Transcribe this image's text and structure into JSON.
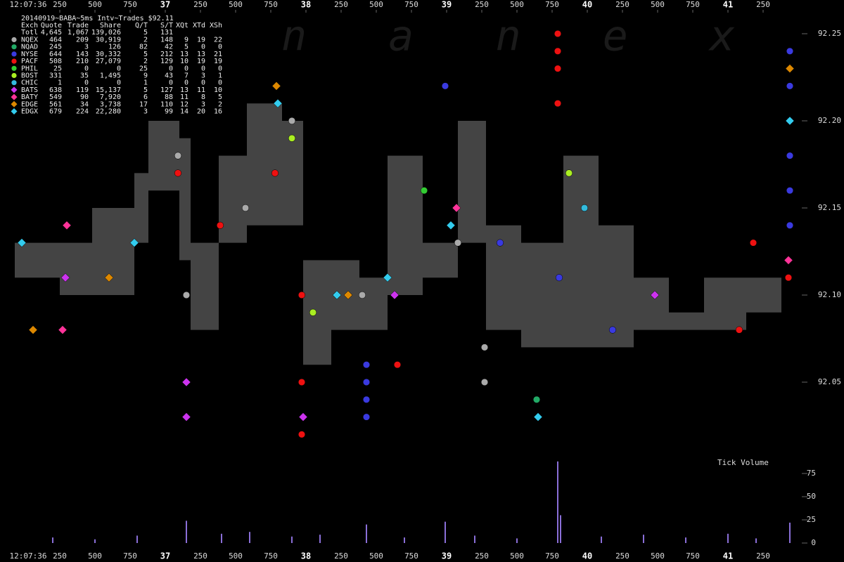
{
  "chart_data": {
    "type": "scatter",
    "title": "20140919~BABA~5ms Intv~Trades $92.11",
    "time_label": "12:07:36",
    "watermark": "n a n e x",
    "xlim": [
      35.825,
      41.825
    ],
    "xticks": [
      {
        "value": 36.25,
        "label": "250"
      },
      {
        "value": 36.5,
        "label": "500"
      },
      {
        "value": 36.75,
        "label": "750"
      },
      {
        "value": 37,
        "label": "37"
      },
      {
        "value": 37.25,
        "label": "250"
      },
      {
        "value": 37.5,
        "label": "500"
      },
      {
        "value": 37.75,
        "label": "750"
      },
      {
        "value": 38,
        "label": "38"
      },
      {
        "value": 38.25,
        "label": "250"
      },
      {
        "value": 38.5,
        "label": "500"
      },
      {
        "value": 38.75,
        "label": "750"
      },
      {
        "value": 39,
        "label": "39"
      },
      {
        "value": 39.25,
        "label": "250"
      },
      {
        "value": 39.5,
        "label": "500"
      },
      {
        "value": 39.75,
        "label": "750"
      },
      {
        "value": 40,
        "label": "40"
      },
      {
        "value": 40.25,
        "label": "250"
      },
      {
        "value": 40.5,
        "label": "500"
      },
      {
        "value": 40.75,
        "label": "750"
      },
      {
        "value": 41,
        "label": "41"
      },
      {
        "value": 41.25,
        "label": "250"
      }
    ],
    "ylim": [
      92.0,
      92.27
    ],
    "yticks": [
      92.05,
      {
        "value": 92.1,
        "label": "92.10"
      },
      92.15,
      {
        "value": 92.2,
        "label": "92.20"
      },
      92.25
    ],
    "stats_header": [
      "Exch",
      "Quote",
      "Trade",
      "Share",
      "Q/T",
      "S/T",
      "XQt",
      "XTd",
      "XSh"
    ],
    "stats_total": [
      "Totl",
      "4,645",
      "1,067",
      "139,026",
      "5",
      "131"
    ],
    "spread": {
      "color": "#444444",
      "x": [
        35.93,
        36.25,
        36.48,
        36.78,
        36.88,
        37.1,
        37.18,
        37.38,
        37.58,
        37.83,
        37.98,
        38.18,
        38.38,
        38.58,
        38.83,
        39.08,
        39.28,
        39.53,
        39.83,
        40.08,
        40.33,
        40.58,
        40.83,
        41.13,
        41.38
      ],
      "high": [
        92.13,
        92.13,
        92.15,
        92.17,
        92.2,
        92.19,
        92.13,
        92.18,
        92.21,
        92.2,
        92.12,
        92.12,
        92.11,
        92.18,
        92.13,
        92.2,
        92.14,
        92.13,
        92.18,
        92.14,
        92.11,
        92.09,
        92.11,
        92.11,
        92.13
      ],
      "low": [
        92.11,
        92.1,
        92.1,
        92.13,
        92.16,
        92.12,
        92.08,
        92.13,
        92.14,
        92.14,
        92.06,
        92.08,
        92.08,
        92.1,
        92.11,
        92.13,
        92.08,
        92.07,
        92.07,
        92.07,
        92.08,
        92.08,
        92.08,
        92.09,
        92.11
      ]
    },
    "series": [
      {
        "name": "NQEX",
        "color": "#aaaaaa",
        "marker": "circle",
        "stats": [
          "464",
          "209",
          "30,919",
          "2",
          "148",
          "9",
          "19",
          "22"
        ],
        "x": [
          39.08,
          39.27,
          39.27,
          37.15,
          37.09,
          37.57,
          37.9,
          38.4
        ],
        "values": [
          92.13,
          92.07,
          92.05,
          92.1,
          92.18,
          92.15,
          92.2,
          92.1
        ]
      },
      {
        "name": "NQAD",
        "color": "#22aa66",
        "marker": "circle",
        "stats": [
          "245",
          "3",
          "126",
          "82",
          "42",
          "5",
          "0",
          "0"
        ],
        "x": [
          39.64
        ],
        "values": [
          92.04
        ]
      },
      {
        "name": "NYSE",
        "color": "#3a3ae0",
        "marker": "circle",
        "stats": [
          "644",
          "143",
          "30,332",
          "5",
          "212",
          "13",
          "13",
          "21"
        ],
        "x": [
          38.43,
          38.43,
          38.43,
          38.43,
          41.44,
          41.44,
          41.44,
          41.44,
          41.44,
          41.44,
          39.38,
          40.18,
          38.99,
          39.8
        ],
        "values": [
          92.06,
          92.05,
          92.04,
          92.03,
          92.24,
          92.22,
          92.2,
          92.18,
          92.16,
          92.14,
          92.13,
          92.08,
          92.22,
          92.11
        ]
      },
      {
        "name": "PACF",
        "color": "#ee1111",
        "marker": "circle",
        "stats": [
          "508",
          "210",
          "27,079",
          "2",
          "129",
          "10",
          "19",
          "19"
        ],
        "x": [
          39.79,
          39.79,
          39.79,
          39.79,
          41.43,
          41.18,
          37.39,
          37.97,
          37.97,
          37.97,
          37.09,
          37.78,
          41.08,
          38.65
        ],
        "values": [
          92.25,
          92.24,
          92.23,
          92.21,
          92.11,
          92.13,
          92.14,
          92.1,
          92.05,
          92.02,
          92.17,
          92.17,
          92.08,
          92.06
        ]
      },
      {
        "name": "PHIL",
        "color": "#33cc33",
        "marker": "circle",
        "stats": [
          "25",
          "0",
          "0",
          "25",
          "0",
          "0",
          "0",
          "0"
        ],
        "x": [
          38.84
        ],
        "values": [
          92.16
        ]
      },
      {
        "name": "BOST",
        "color": "#aaee22",
        "marker": "circle",
        "stats": [
          "331",
          "35",
          "1,495",
          "9",
          "43",
          "7",
          "3",
          "1"
        ],
        "x": [
          37.9,
          38.05,
          39.87
        ],
        "values": [
          92.19,
          92.09,
          92.17
        ]
      },
      {
        "name": "CHIC",
        "color": "#33bbdd",
        "marker": "circle",
        "stats": [
          "1",
          "0",
          "0",
          "1",
          "0",
          "0",
          "0",
          "0"
        ],
        "x": [
          39.98
        ],
        "values": [
          92.15
        ]
      },
      {
        "name": "BATS",
        "color": "#cc33ee",
        "marker": "diamond",
        "stats": [
          "638",
          "119",
          "15,137",
          "5",
          "127",
          "13",
          "11",
          "10"
        ],
        "x": [
          37.15,
          37.15,
          37.98,
          36.29,
          40.48,
          38.63
        ],
        "values": [
          92.03,
          92.05,
          92.03,
          92.11,
          92.1,
          92.1
        ]
      },
      {
        "name": "BATY",
        "color": "#ff3399",
        "marker": "diamond",
        "stats": [
          "549",
          "90",
          "7,920",
          "6",
          "88",
          "11",
          "8",
          "5"
        ],
        "x": [
          39.07,
          36.27,
          36.3,
          41.43
        ],
        "values": [
          92.15,
          92.08,
          92.14,
          92.12
        ]
      },
      {
        "name": "EDGE",
        "color": "#dd8800",
        "marker": "diamond",
        "stats": [
          "561",
          "34",
          "3,738",
          "17",
          "110",
          "12",
          "3",
          "2"
        ],
        "x": [
          38.3,
          36.06,
          37.79,
          36.6,
          41.44
        ],
        "values": [
          92.1,
          92.08,
          92.22,
          92.11,
          92.23
        ]
      },
      {
        "name": "EDGX",
        "color": "#33ccee",
        "marker": "diamond",
        "stats": [
          "679",
          "224",
          "22,280",
          "3",
          "99",
          "14",
          "20",
          "16"
        ],
        "x": [
          38.58,
          38.22,
          41.44,
          37.8,
          36.78,
          35.98,
          39.03,
          39.65
        ],
        "values": [
          92.11,
          92.1,
          92.2,
          92.21,
          92.13,
          92.13,
          92.14,
          92.03
        ]
      }
    ],
    "volume": {
      "label": "Tick Volume",
      "color": "#8a6fd8",
      "ylim": [
        0,
        100
      ],
      "yticks": [
        0,
        25,
        50,
        75
      ],
      "x": [
        36.2,
        36.5,
        36.8,
        37.15,
        37.4,
        37.6,
        37.9,
        38.1,
        38.43,
        38.7,
        38.99,
        39.2,
        39.5,
        39.79,
        39.81,
        40.1,
        40.4,
        40.7,
        41.0,
        41.2,
        41.44
      ],
      "values": [
        6,
        4,
        8,
        24,
        10,
        12,
        7,
        9,
        20,
        6,
        23,
        8,
        5,
        88,
        30,
        7,
        9,
        6,
        10,
        5,
        22
      ]
    }
  }
}
